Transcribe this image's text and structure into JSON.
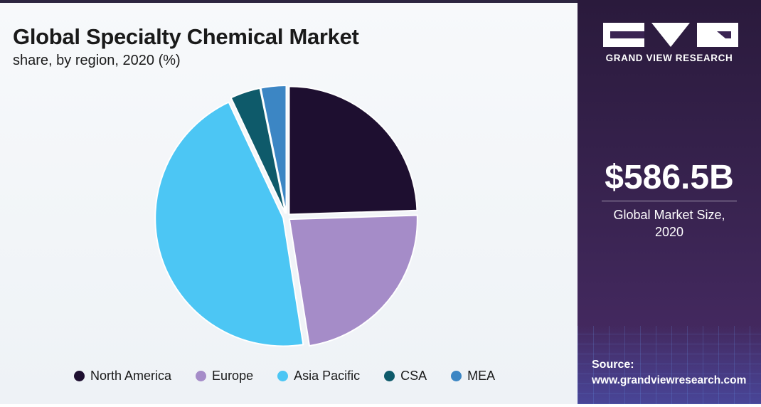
{
  "chart_data": {
    "type": "pie",
    "title": "Global Specialty Chemical Market",
    "subtitle": "share, by region, 2020 (%)",
    "categories": [
      "North America",
      "Europe",
      "Asia Pacific",
      "CSA",
      "MEA"
    ],
    "values": [
      24.5,
      23.0,
      45.5,
      3.8,
      3.2
    ],
    "colors": [
      "#1e0f30",
      "#a58cc8",
      "#4cc6f4",
      "#0e5a6a",
      "#3c86c4"
    ],
    "legend_position": "bottom"
  },
  "panel": {
    "brand": "GRAND VIEW RESEARCH",
    "market_value": "$586.5B",
    "market_caption_line1": "Global Market Size,",
    "market_caption_line2": "2020",
    "source_label": "Source:",
    "source_url": "www.grandviewresearch.com"
  }
}
